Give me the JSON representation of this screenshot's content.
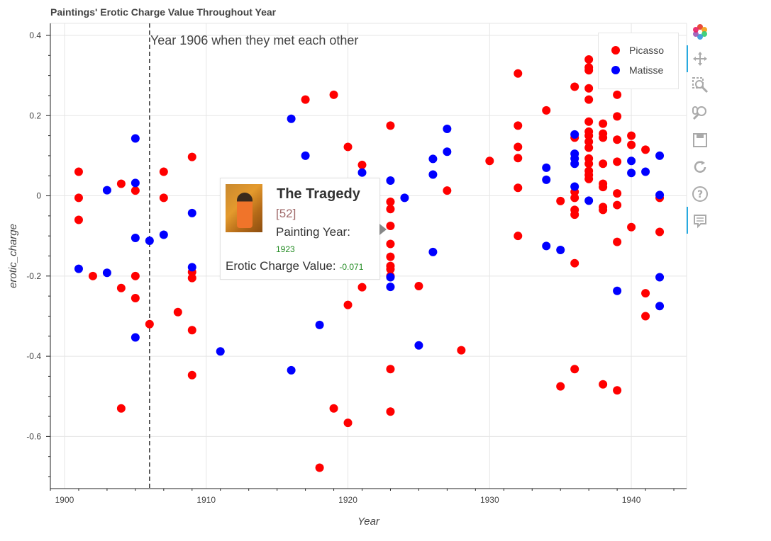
{
  "chart_data": {
    "type": "scatter",
    "title": "Paintings' Erotic Charge Value Throughout Year",
    "xlabel": "Year",
    "ylabel": "erotic_charge",
    "xlim": [
      1899.0,
      1943.9
    ],
    "ylim": [
      -0.73,
      0.43
    ],
    "xticks": [
      1900,
      1910,
      1920,
      1930,
      1940
    ],
    "yticks": [
      0.4,
      0.2,
      0,
      -0.2,
      -0.4,
      -0.6
    ],
    "grid": true,
    "legend": "top-right",
    "annotation": {
      "x": 1906,
      "label": "Year 1906 when they met each other"
    },
    "series": [
      {
        "name": "Picasso",
        "color": "#ff0000",
        "points": [
          [
            1901,
            0.06
          ],
          [
            1901,
            -0.005
          ],
          [
            1901,
            -0.06
          ],
          [
            1902,
            -0.2
          ],
          [
            1904,
            0.03
          ],
          [
            1904,
            -0.23
          ],
          [
            1904,
            -0.53
          ],
          [
            1905,
            0.013
          ],
          [
            1905,
            -0.2
          ],
          [
            1905,
            -0.255
          ],
          [
            1906,
            -0.32
          ],
          [
            1907,
            0.06
          ],
          [
            1907,
            -0.005
          ],
          [
            1908,
            -0.29
          ],
          [
            1909,
            0.097
          ],
          [
            1909,
            -0.19
          ],
          [
            1909,
            -0.205
          ],
          [
            1909,
            -0.335
          ],
          [
            1909,
            -0.447
          ],
          [
            1917,
            0.24
          ],
          [
            1918,
            -0.678
          ],
          [
            1919,
            0.252
          ],
          [
            1919,
            -0.53
          ],
          [
            1920,
            0.122
          ],
          [
            1920,
            -0.272
          ],
          [
            1920,
            -0.566
          ],
          [
            1921,
            0.077
          ],
          [
            1921,
            -0.228
          ],
          [
            1923,
            0.175
          ],
          [
            1923,
            -0.015
          ],
          [
            1923,
            -0.033
          ],
          [
            1923,
            -0.075
          ],
          [
            1923,
            -0.12
          ],
          [
            1923,
            -0.152
          ],
          [
            1923,
            -0.175
          ],
          [
            1923,
            -0.183
          ],
          [
            1923,
            -0.2
          ],
          [
            1923,
            -0.432
          ],
          [
            1923,
            -0.538
          ],
          [
            1925,
            -0.225
          ],
          [
            1927,
            0.013
          ],
          [
            1928,
            -0.385
          ],
          [
            1930,
            0.087
          ],
          [
            1932,
            0.305
          ],
          [
            1932,
            0.175
          ],
          [
            1932,
            0.122
          ],
          [
            1932,
            0.094
          ],
          [
            1932,
            0.02
          ],
          [
            1932,
            -0.1
          ],
          [
            1934,
            0.213
          ],
          [
            1935,
            -0.013
          ],
          [
            1935,
            -0.475
          ],
          [
            1936,
            0.272
          ],
          [
            1936,
            0.145
          ],
          [
            1936,
            0.01
          ],
          [
            1936,
            -0.005
          ],
          [
            1936,
            -0.035
          ],
          [
            1936,
            -0.047
          ],
          [
            1936,
            -0.168
          ],
          [
            1936,
            -0.432
          ],
          [
            1937,
            0.34
          ],
          [
            1937,
            0.32
          ],
          [
            1937,
            0.313
          ],
          [
            1937,
            0.268
          ],
          [
            1937,
            0.24
          ],
          [
            1937,
            0.185
          ],
          [
            1937,
            0.16
          ],
          [
            1937,
            0.15
          ],
          [
            1937,
            0.135
          ],
          [
            1937,
            0.12
          ],
          [
            1937,
            0.093
          ],
          [
            1937,
            0.08
          ],
          [
            1937,
            0.062
          ],
          [
            1937,
            0.052
          ],
          [
            1937,
            0.042
          ],
          [
            1938,
            0.283
          ],
          [
            1938,
            0.18
          ],
          [
            1938,
            0.155
          ],
          [
            1938,
            0.145
          ],
          [
            1938,
            0.08
          ],
          [
            1938,
            0.03
          ],
          [
            1938,
            0.022
          ],
          [
            1938,
            -0.028
          ],
          [
            1938,
            -0.035
          ],
          [
            1938,
            -0.47
          ],
          [
            1939,
            0.252
          ],
          [
            1939,
            0.198
          ],
          [
            1939,
            0.14
          ],
          [
            1939,
            0.085
          ],
          [
            1939,
            0.006
          ],
          [
            1939,
            -0.023
          ],
          [
            1939,
            -0.115
          ],
          [
            1939,
            -0.485
          ],
          [
            1940,
            0.15
          ],
          [
            1940,
            0.127
          ],
          [
            1940,
            -0.078
          ],
          [
            1941,
            0.115
          ],
          [
            1941,
            -0.243
          ],
          [
            1941,
            -0.3
          ],
          [
            1942,
            -0.005
          ],
          [
            1942,
            -0.09
          ]
        ]
      },
      {
        "name": "Matisse",
        "color": "#0000ff",
        "points": [
          [
            1901,
            -0.182
          ],
          [
            1903,
            0.014
          ],
          [
            1903,
            -0.192
          ],
          [
            1905,
            0.143
          ],
          [
            1905,
            0.032
          ],
          [
            1905,
            -0.105
          ],
          [
            1905,
            -0.353
          ],
          [
            1906,
            -0.112
          ],
          [
            1907,
            -0.097
          ],
          [
            1909,
            -0.043
          ],
          [
            1909,
            -0.178
          ],
          [
            1911,
            -0.388
          ],
          [
            1916,
            0.192
          ],
          [
            1916,
            -0.435
          ],
          [
            1917,
            0.1
          ],
          [
            1918,
            -0.322
          ],
          [
            1921,
            0.058
          ],
          [
            1923,
            0.038
          ],
          [
            1923,
            -0.203
          ],
          [
            1923,
            -0.227
          ],
          [
            1924,
            -0.005
          ],
          [
            1925,
            -0.373
          ],
          [
            1926,
            0.092
          ],
          [
            1926,
            0.053
          ],
          [
            1926,
            -0.14
          ],
          [
            1927,
            0.167
          ],
          [
            1927,
            0.11
          ],
          [
            1934,
            0.07
          ],
          [
            1934,
            0.04
          ],
          [
            1934,
            -0.125
          ],
          [
            1935,
            -0.135
          ],
          [
            1936,
            0.153
          ],
          [
            1936,
            0.105
          ],
          [
            1936,
            0.093
          ],
          [
            1936,
            0.08
          ],
          [
            1936,
            0.023
          ],
          [
            1937,
            -0.012
          ],
          [
            1939,
            -0.237
          ],
          [
            1940,
            0.087
          ],
          [
            1940,
            0.057
          ],
          [
            1941,
            0.06
          ],
          [
            1942,
            0.1
          ],
          [
            1942,
            0.002
          ],
          [
            1942,
            -0.203
          ],
          [
            1942,
            -0.275
          ]
        ]
      }
    ]
  },
  "legend": {
    "items": [
      {
        "label": "Picasso",
        "color": "#ff0000"
      },
      {
        "label": "Matisse",
        "color": "#0000ff"
      }
    ]
  },
  "tooltip": {
    "title": "The Tragedy",
    "index": "[52]",
    "year_label": "Painting Year:",
    "year": "1923",
    "ec_label": "Erotic Charge Value:",
    "ec": "-0.071"
  },
  "toolbar": {
    "icons": [
      "bokeh-logo-icon",
      "pan-icon",
      "box-zoom-icon",
      "wheel-zoom-icon",
      "save-icon",
      "reset-icon",
      "help-icon",
      "hover-icon"
    ]
  }
}
